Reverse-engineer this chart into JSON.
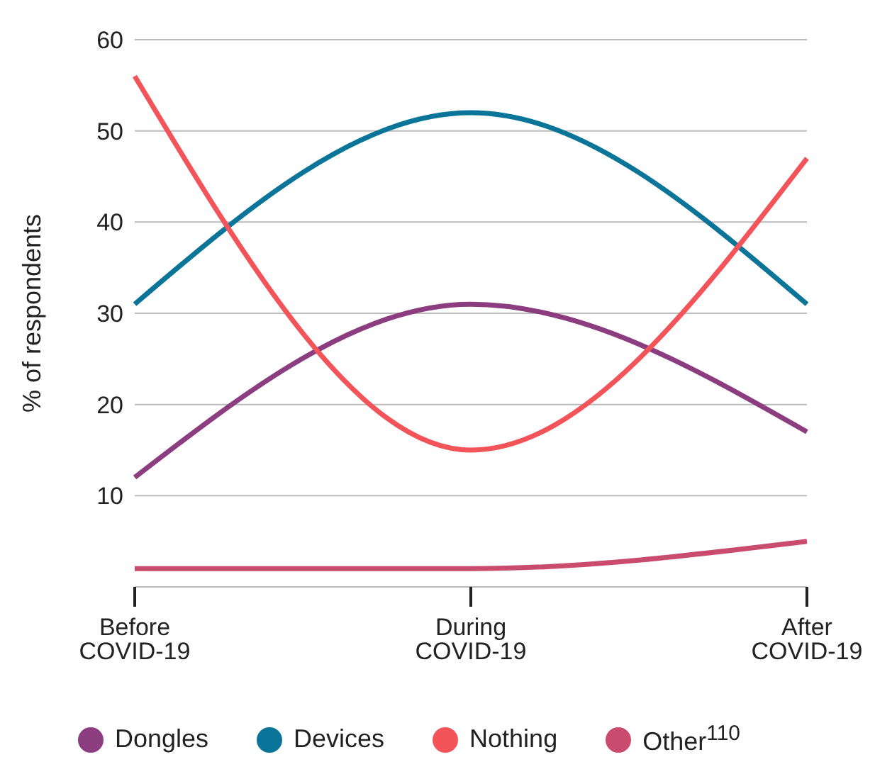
{
  "chart_data": {
    "type": "line",
    "ylabel": "% of respondents",
    "categories": [
      "Before COVID-19",
      "During COVID-19",
      "After COVID-19"
    ],
    "series": [
      {
        "name": "Dongles",
        "color": "#8c3d80",
        "values": [
          12,
          31,
          17
        ]
      },
      {
        "name": "Devices",
        "color": "#0a7598",
        "values": [
          31,
          52,
          31
        ]
      },
      {
        "name": "Nothing",
        "color": "#f25459",
        "values": [
          56,
          15,
          47
        ]
      },
      {
        "name": "Other$^{110}$",
        "color": "#c94b6d",
        "values": [
          2,
          2,
          5
        ]
      }
    ],
    "ylim": [
      0,
      60
    ],
    "yticks": [
      10,
      20,
      30,
      40,
      50,
      60
    ],
    "grid": "y",
    "legend": "bottom",
    "marker": "none",
    "line_style": "solid"
  }
}
